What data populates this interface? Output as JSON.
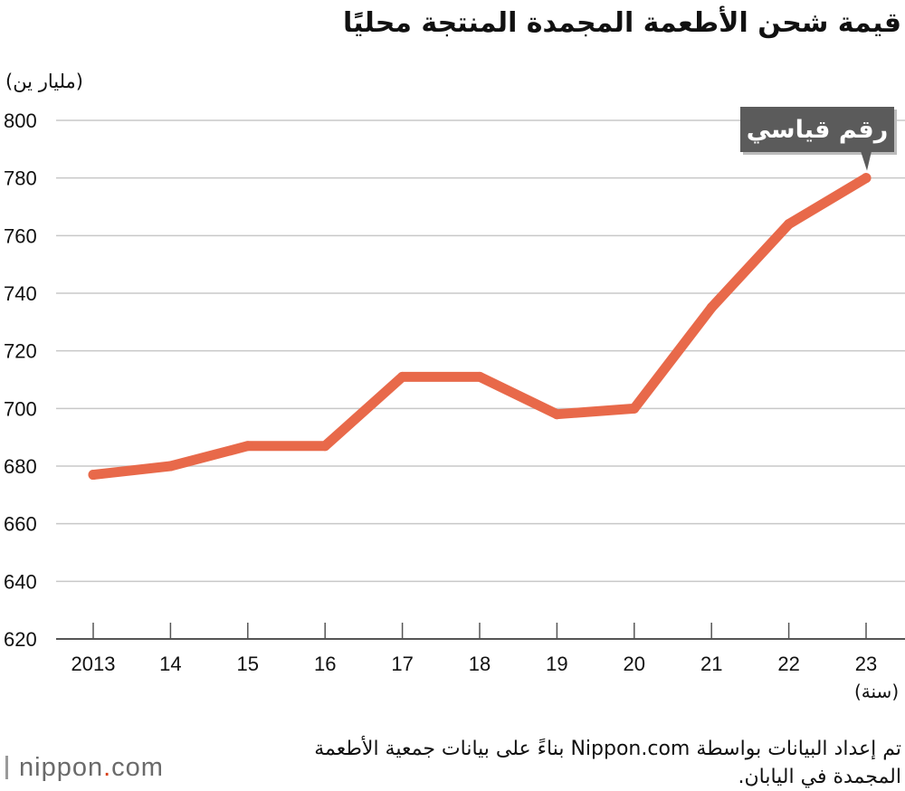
{
  "title": "قيمة شحن الأطعمة المجمدة المنتجة محليًا",
  "chart_data": {
    "type": "line",
    "title": "قيمة شحن الأطعمة المجمدة المنتجة محليًا",
    "ylabel": "(مليار ين)",
    "xlabel": "(سنة)",
    "categories": [
      "2013",
      "14",
      "15",
      "16",
      "17",
      "18",
      "19",
      "20",
      "21",
      "22",
      "23"
    ],
    "series": [
      {
        "values": [
          677,
          680,
          687,
          687,
          711,
          711,
          698,
          700,
          735,
          764,
          780
        ]
      }
    ],
    "ylim": [
      620,
      800
    ],
    "yticks": [
      800,
      780,
      760,
      740,
      720,
      700,
      680,
      660,
      640,
      620
    ],
    "grid": true,
    "line_color": "#e8694a",
    "annotation": {
      "text": "رقم قياسي",
      "category": "23"
    }
  },
  "source": "تم إعداد البيانات بواسطة Nippon.com بناءً على بيانات جمعية الأطعمة المجمدة في اليابان.",
  "logo": {
    "name": "nippon",
    "dot": ".",
    "suffix": "com"
  }
}
